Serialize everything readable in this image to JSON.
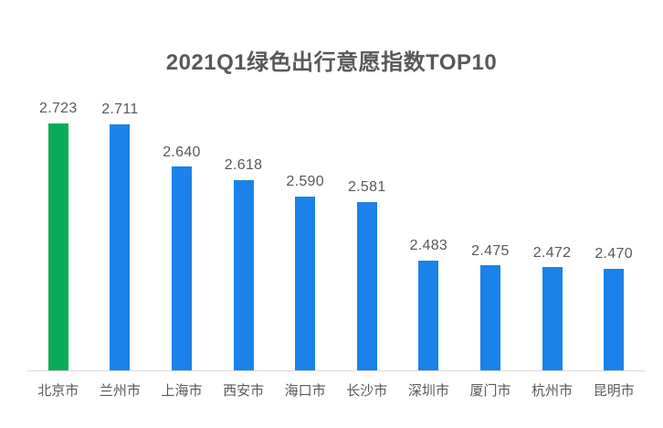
{
  "chart_data": {
    "type": "bar",
    "title": "2021Q1绿色出行意愿指数TOP10",
    "categories": [
      "北京市",
      "兰州市",
      "上海市",
      "西安市",
      "海口市",
      "长沙市",
      "深圳市",
      "厦门市",
      "杭州市",
      "昆明市"
    ],
    "values": [
      2.723,
      2.711,
      2.64,
      2.618,
      2.59,
      2.581,
      2.483,
      2.475,
      2.472,
      2.47
    ],
    "value_labels": [
      "2.723",
      "2.711",
      "2.640",
      "2.618",
      "2.590",
      "2.581",
      "2.483",
      "2.475",
      "2.472",
      "2.470"
    ],
    "xlabel": "",
    "ylabel": "",
    "ylim": [
      2.3,
      2.75
    ],
    "grid": false,
    "legend": "none",
    "data_labels": "above-bars",
    "highlight_index": 0,
    "colors": {
      "bar_default": "#1a82e8",
      "bar_highlight": "#0aab56",
      "title_text": "#595959",
      "label_text": "#595959",
      "axis_line": "#d9d9d9",
      "background": "#ffffff"
    }
  }
}
